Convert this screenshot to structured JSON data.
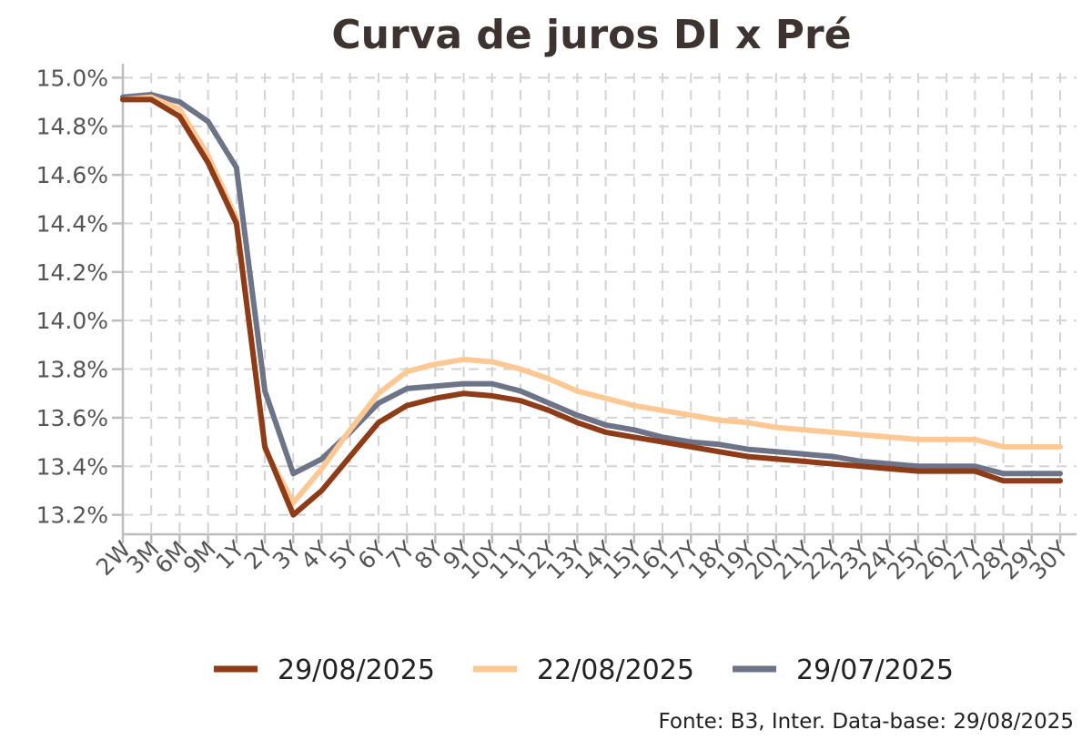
{
  "chart_data": {
    "type": "line",
    "title": "Curva de juros DI x Pré",
    "categories": [
      "2W",
      "3M",
      "6M",
      "9M",
      "1Y",
      "2Y",
      "3Y",
      "4Y",
      "5Y",
      "6Y",
      "7Y",
      "8Y",
      "9Y",
      "10Y",
      "11Y",
      "12Y",
      "13Y",
      "14Y",
      "15Y",
      "16Y",
      "17Y",
      "18Y",
      "19Y",
      "20Y",
      "21Y",
      "22Y",
      "23Y",
      "24Y",
      "25Y",
      "26Y",
      "27Y",
      "28Y",
      "29Y",
      "30Y"
    ],
    "y_ticks": [
      "13.2%",
      "13.4%",
      "13.6%",
      "13.8%",
      "14.0%",
      "14.2%",
      "14.4%",
      "14.6%",
      "14.8%",
      "15.0%"
    ],
    "ylim": [
      13.12,
      15.02
    ],
    "y_unit": "%",
    "grid": true,
    "legend_position": "bottom",
    "series": [
      {
        "name": "29/08/2025",
        "color": "#8e3b17",
        "values": [
          14.91,
          14.91,
          14.84,
          14.65,
          14.4,
          13.48,
          13.2,
          13.3,
          13.44,
          13.58,
          13.65,
          13.68,
          13.7,
          13.69,
          13.67,
          13.63,
          13.58,
          13.54,
          13.52,
          13.5,
          13.48,
          13.46,
          13.44,
          13.43,
          13.42,
          13.41,
          13.4,
          13.39,
          13.38,
          13.38,
          13.38,
          13.34,
          13.34,
          13.34
        ]
      },
      {
        "name": "22/08/2025",
        "color": "#fcc994",
        "values": [
          14.91,
          14.92,
          14.87,
          14.68,
          14.42,
          13.47,
          13.25,
          13.39,
          13.55,
          13.7,
          13.79,
          13.82,
          13.84,
          13.83,
          13.8,
          13.76,
          13.71,
          13.68,
          13.65,
          13.63,
          13.61,
          13.59,
          13.58,
          13.56,
          13.55,
          13.54,
          13.53,
          13.52,
          13.51,
          13.51,
          13.51,
          13.48,
          13.48,
          13.48
        ]
      },
      {
        "name": "29/07/2025",
        "color": "#6d7488",
        "values": [
          14.92,
          14.93,
          14.9,
          14.82,
          14.63,
          13.71,
          13.37,
          13.43,
          13.54,
          13.66,
          13.72,
          13.73,
          13.74,
          13.74,
          13.71,
          13.66,
          13.61,
          13.57,
          13.55,
          13.52,
          13.5,
          13.49,
          13.47,
          13.46,
          13.45,
          13.44,
          13.42,
          13.41,
          13.4,
          13.4,
          13.4,
          13.37,
          13.37,
          13.37
        ]
      }
    ]
  },
  "source": "Fonte: B3, Inter. Data-base: 29/08/2025"
}
